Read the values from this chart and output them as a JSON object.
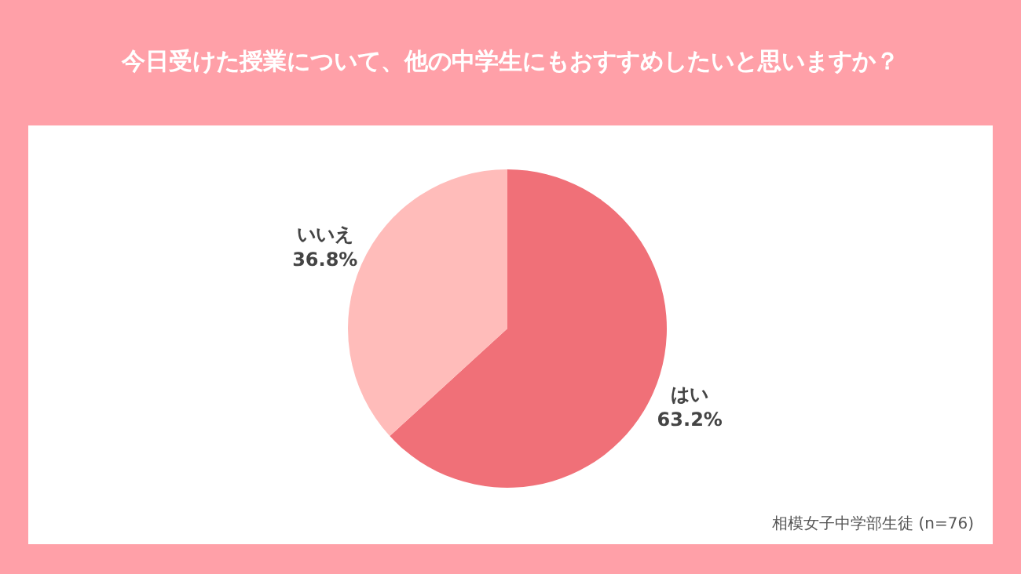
{
  "chart_data": {
    "type": "pie",
    "title": "今日受けた授業について、他の中学生にもおすすめしたいと思いますか？",
    "categories": [
      "はい",
      "いいえ"
    ],
    "values": [
      63.2,
      36.8
    ],
    "colors": [
      "#f07078",
      "#ffbcba"
    ],
    "value_labels": [
      "63.2%",
      "36.8%"
    ],
    "annotations": [
      "相模女子中学部生徒 (n=76)"
    ],
    "legend": false
  }
}
